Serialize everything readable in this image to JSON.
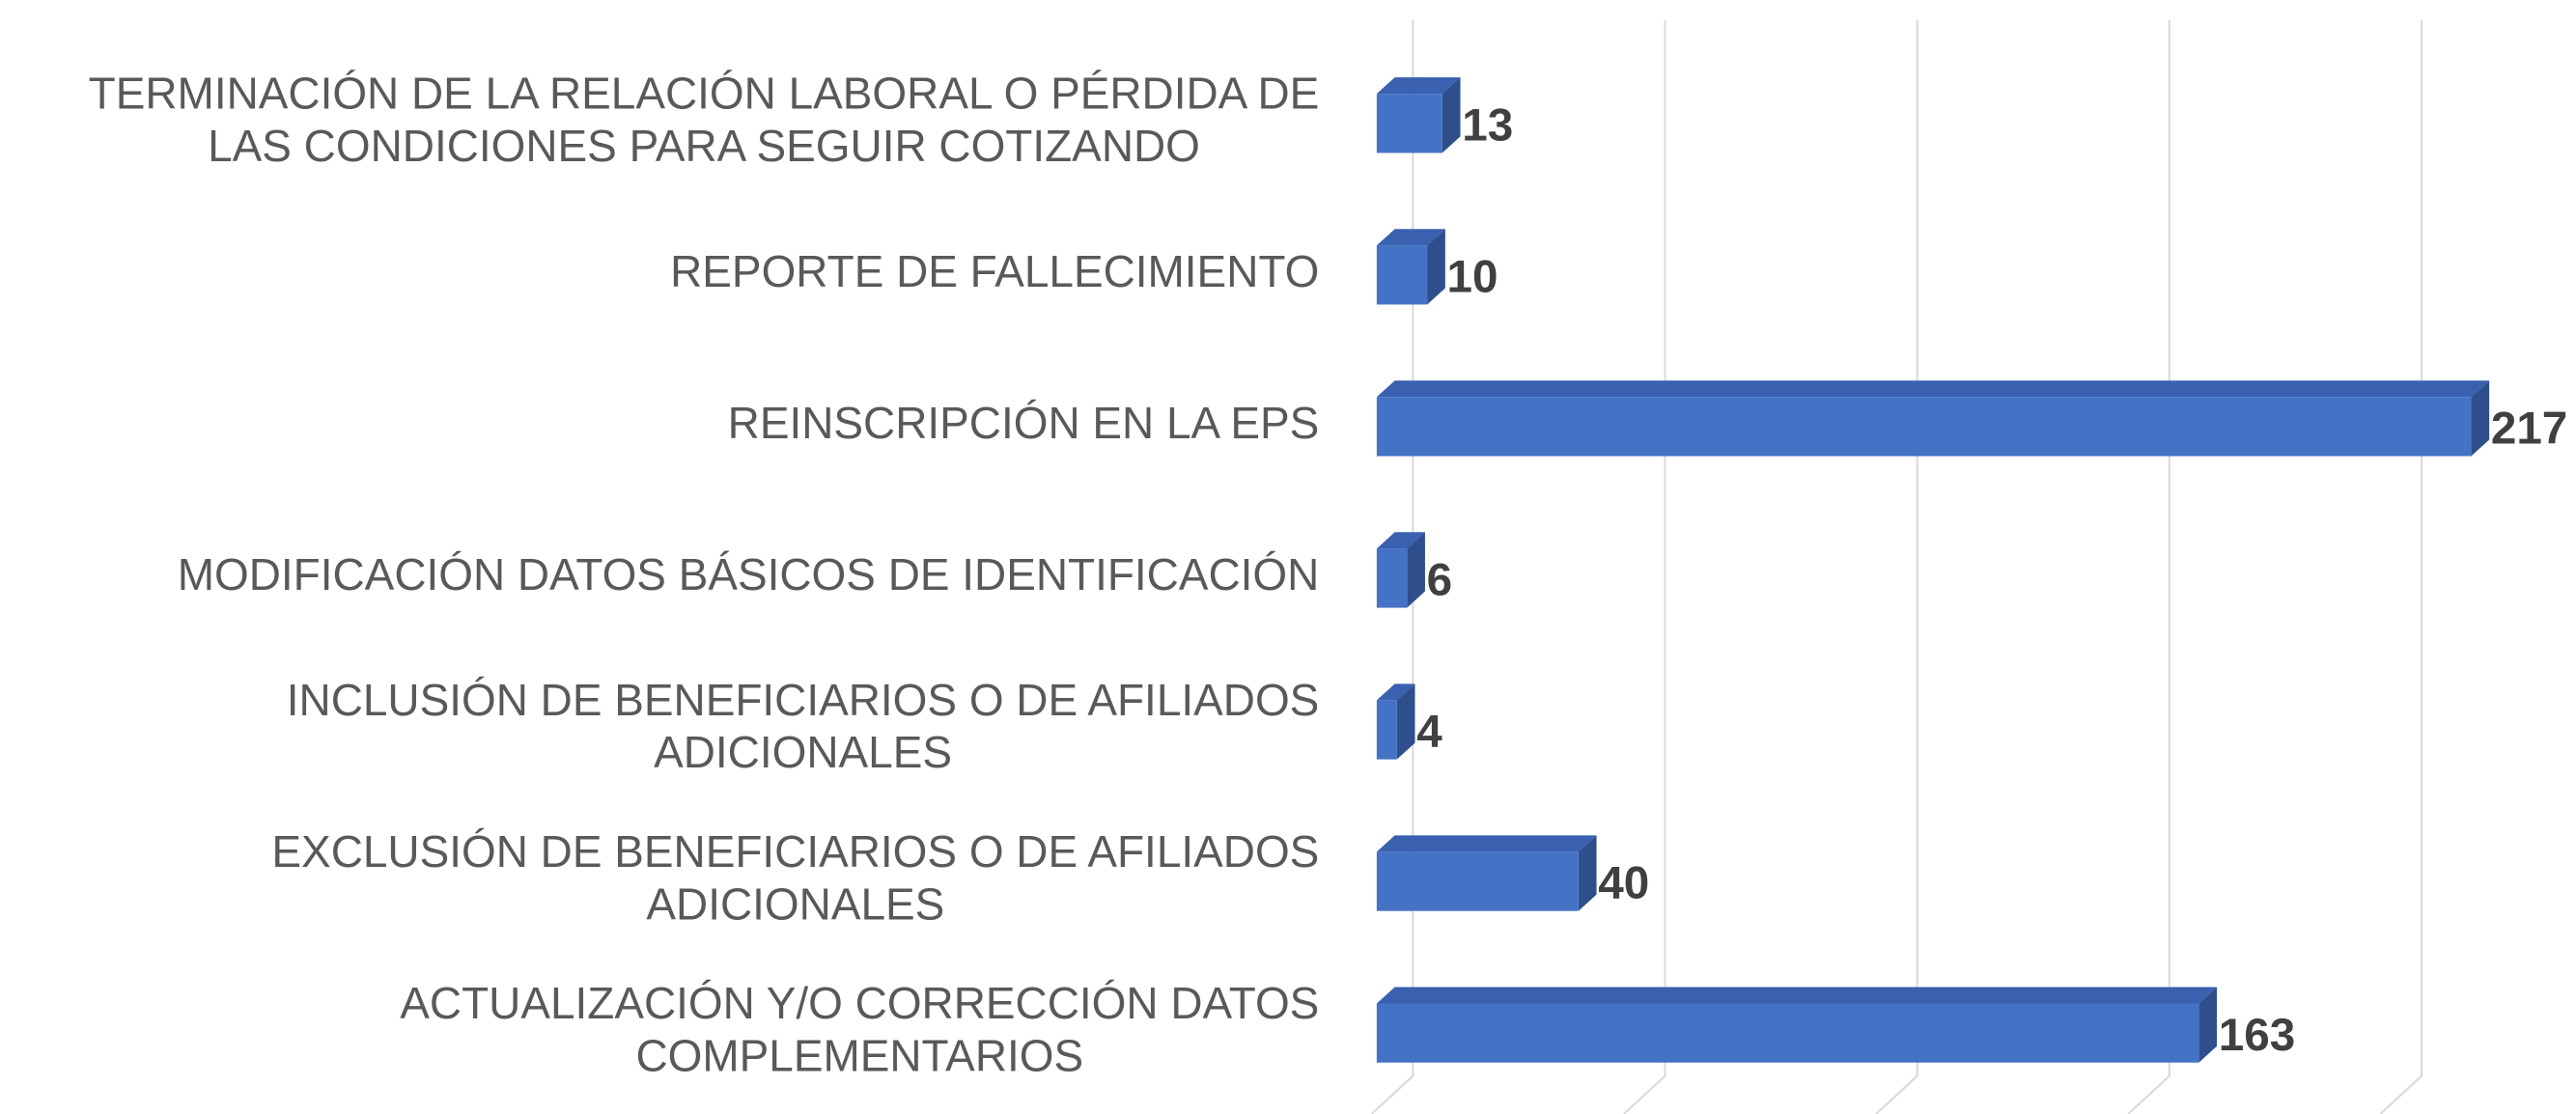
{
  "chart_data": {
    "type": "bar3d_horizontal",
    "categories": [
      "TERMINACIÓN DE LA RELACIÓN LABORAL O PÉRDIDA DE LAS CONDICIONES PARA SEGUIR COTIZANDO",
      "REPORTE DE FALLECIMIENTO",
      "REINSCRIPCIÓN EN LA EPS",
      "MODIFICACIÓN DATOS BÁSICOS DE IDENTIFICACIÓN",
      "INCLUSIÓN DE BENEFICIARIOS O DE AFILIADOS ADICIONALES",
      "EXCLUSIÓN DE BENEFICIARIOS O DE AFILIADOS ADICIONALES",
      "ACTUALIZACIÓN Y/O CORRECCIÓN DATOS COMPLEMENTARIOS"
    ],
    "values": [
      13,
      10,
      217,
      6,
      4,
      40,
      163
    ],
    "color": "#4472c4",
    "xlim": [
      0,
      220
    ],
    "xticks": [
      0,
      50,
      100,
      150,
      200
    ],
    "grid": true
  }
}
